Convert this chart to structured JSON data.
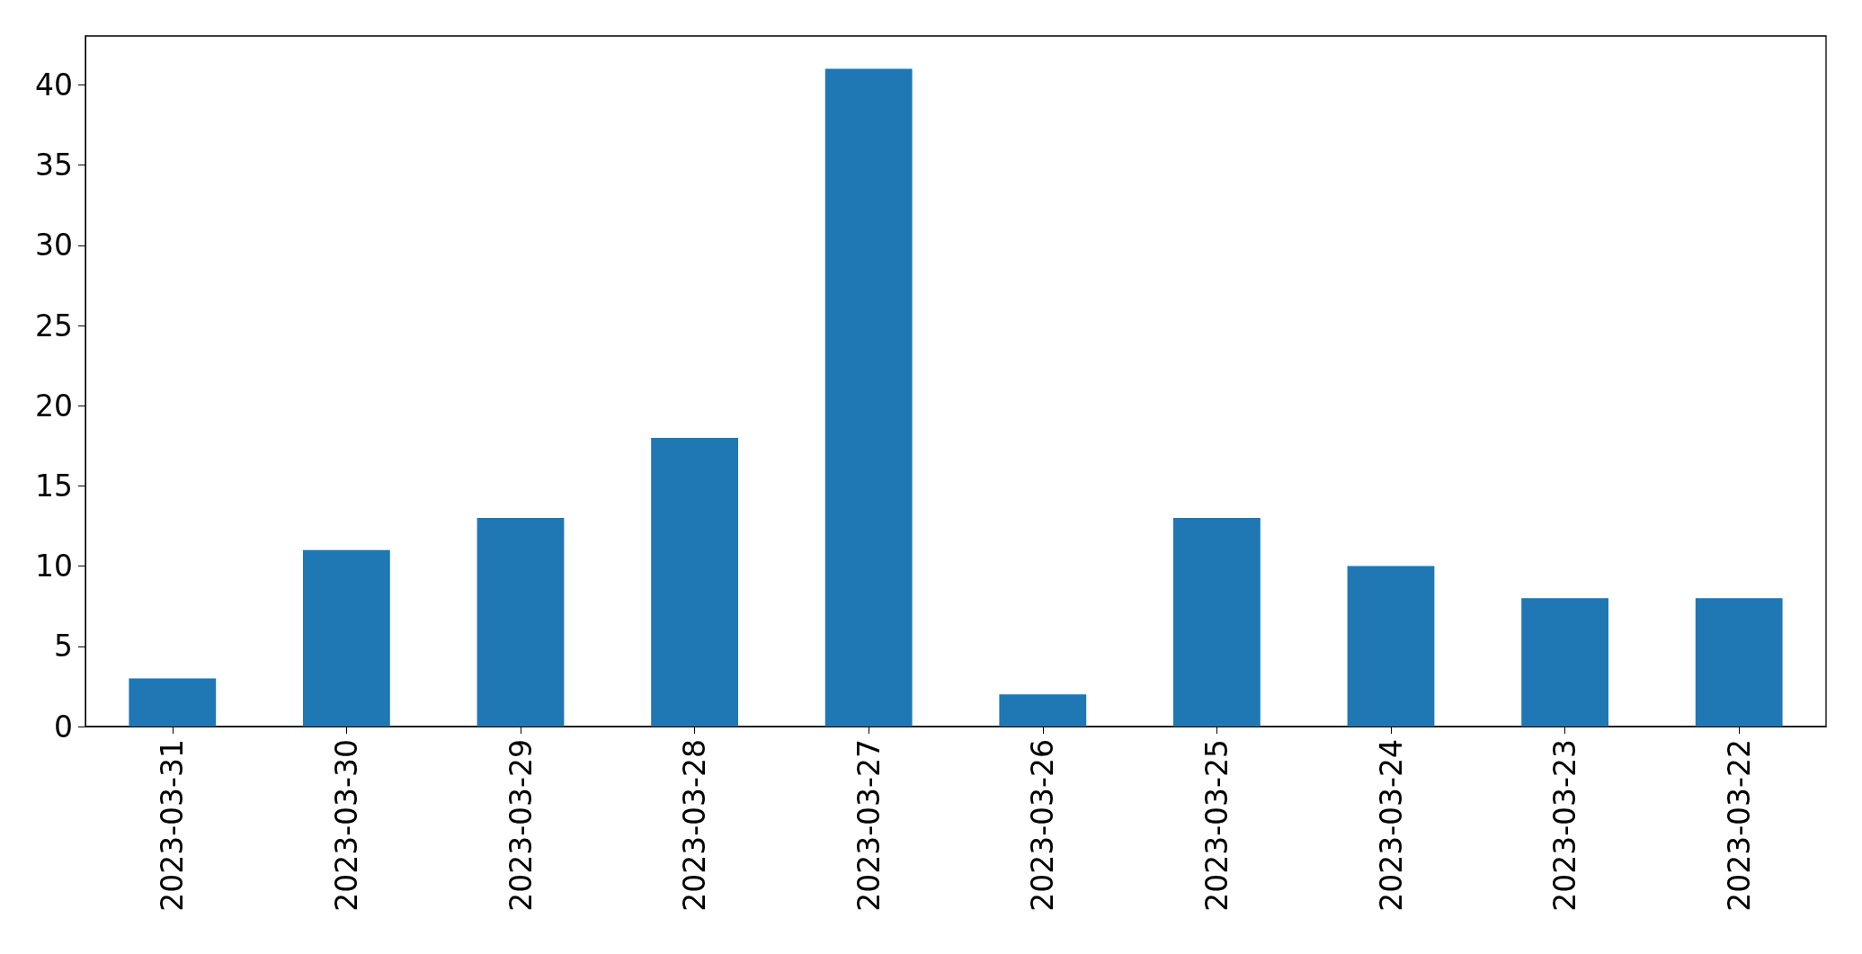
{
  "chart_data": {
    "type": "bar",
    "categories": [
      "2023-03-31",
      "2023-03-30",
      "2023-03-29",
      "2023-03-28",
      "2023-03-27",
      "2023-03-26",
      "2023-03-25",
      "2023-03-24",
      "2023-03-23",
      "2023-03-22"
    ],
    "values": [
      3,
      11,
      13,
      18,
      41,
      2,
      13,
      10,
      8,
      8
    ],
    "color": "#1f77b4",
    "ylim": [
      0,
      43.05
    ],
    "yticks": [
      0,
      5,
      10,
      15,
      20,
      25,
      30,
      35,
      40
    ]
  }
}
